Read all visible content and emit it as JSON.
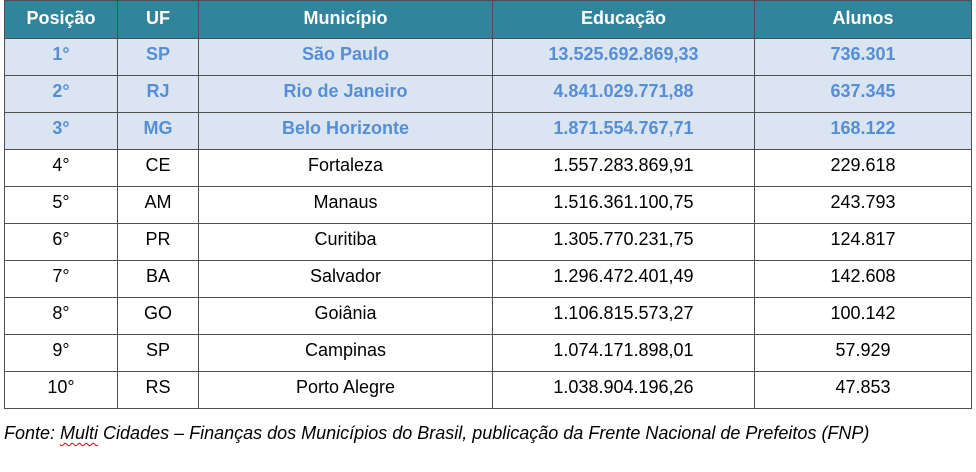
{
  "table": {
    "headers": [
      "Posição",
      "UF",
      "Município",
      "Educação",
      "Alunos"
    ],
    "rows": [
      {
        "pos": "1°",
        "uf": "SP",
        "city": "São Paulo",
        "education": "13.525.692.869,33",
        "students": "736.301",
        "highlight": true
      },
      {
        "pos": "2°",
        "uf": "RJ",
        "city": "Rio de Janeiro",
        "education": "4.841.029.771,88",
        "students": "637.345",
        "highlight": true
      },
      {
        "pos": "3°",
        "uf": "MG",
        "city": "Belo Horizonte",
        "education": "1.871.554.767,71",
        "students": "168.122",
        "highlight": true
      },
      {
        "pos": "4°",
        "uf": "CE",
        "city": "Fortaleza",
        "education": "1.557.283.869,91",
        "students": "229.618",
        "highlight": false
      },
      {
        "pos": "5°",
        "uf": "AM",
        "city": "Manaus",
        "education": "1.516.361.100,75",
        "students": "243.793",
        "highlight": false
      },
      {
        "pos": "6°",
        "uf": "PR",
        "city": "Curitiba",
        "education": "1.305.770.231,75",
        "students": "124.817",
        "highlight": false
      },
      {
        "pos": "7°",
        "uf": "BA",
        "city": "Salvador",
        "education": "1.296.472.401,49",
        "students": "142.608",
        "highlight": false
      },
      {
        "pos": "8°",
        "uf": "GO",
        "city": "Goiânia",
        "education": "1.106.815.573,27",
        "students": "100.142",
        "highlight": false
      },
      {
        "pos": "9°",
        "uf": "SP",
        "city": "Campinas",
        "education": "1.074.171.898,01",
        "students": "57.929",
        "highlight": false
      },
      {
        "pos": "10°",
        "uf": "RS",
        "city": "Porto Alegre",
        "education": "1.038.904.196,26",
        "students": "47.853",
        "highlight": false
      }
    ]
  },
  "source": {
    "prefix": "Fonte: ",
    "flagged_word": "Multi",
    "rest": " Cidades – Finanças dos Municípios do Brasil, publicação da Frente Nacional de Prefeitos (FNP)"
  },
  "colors": {
    "header_bg": "#31849b",
    "header_text": "#ffffff",
    "highlight_bg": "#dbe5f1",
    "highlight_text": "#558ed5",
    "border": "#4f4f4f"
  }
}
